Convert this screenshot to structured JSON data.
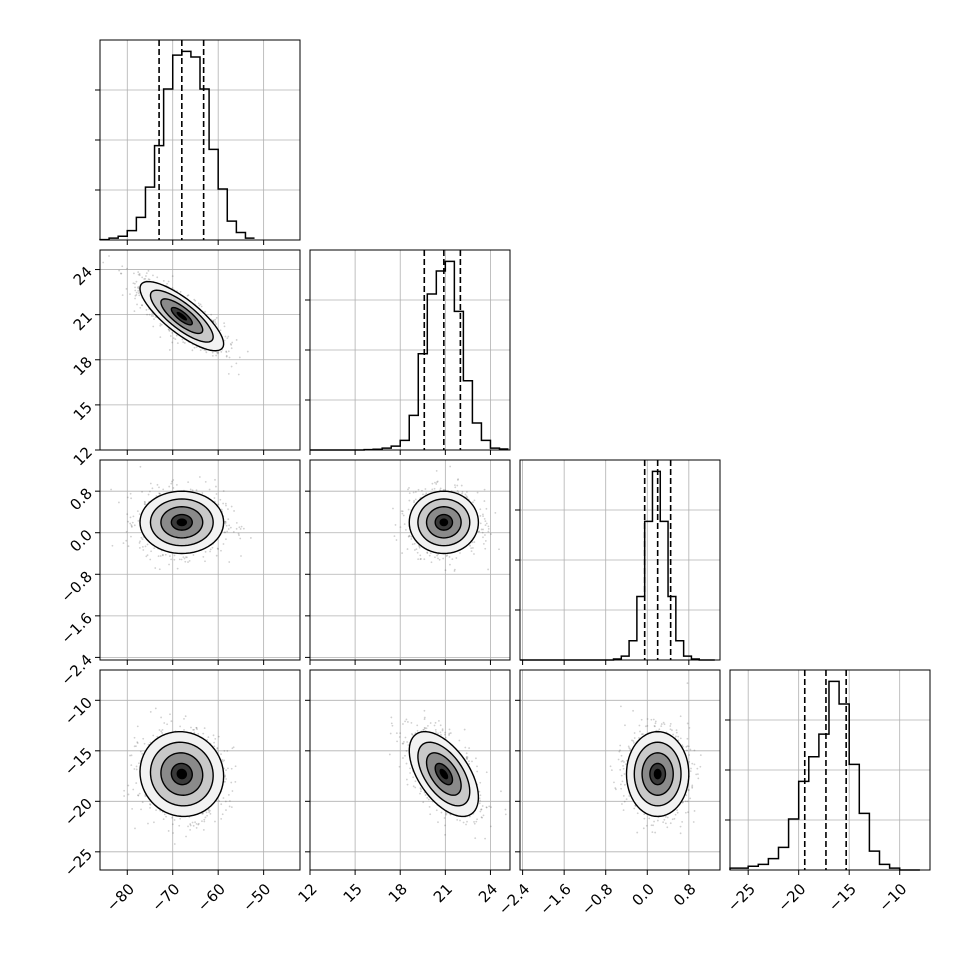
{
  "chart_data": {
    "type": "corner",
    "parameters": [
      {
        "range": [
          -86,
          -42
        ],
        "ticks": [
          -80,
          -70,
          -60,
          -50
        ],
        "tick_labels": [
          "−80",
          "−70",
          "−60",
          "−50"
        ],
        "center": -68,
        "sigma": 4.6,
        "quantiles": [
          -73.0,
          -68.0,
          -63.2
        ]
      },
      {
        "range": [
          12,
          25.3
        ],
        "ticks": [
          12,
          15,
          18,
          21,
          24
        ],
        "tick_labels": [
          "12",
          "15",
          "18",
          "21",
          "24"
        ],
        "center": 20.9,
        "sigma": 1.15,
        "quantiles": [
          19.6,
          20.9,
          22.0
        ]
      },
      {
        "range": [
          -2.45,
          1.4
        ],
        "ticks": [
          -2.4,
          -1.6,
          -0.8,
          0.0,
          0.8
        ],
        "tick_labels": [
          "−2.4",
          "−1.6",
          "−0.8",
          "0.0",
          "0.8"
        ],
        "center": 0.2,
        "sigma": 0.3,
        "quantiles": [
          -0.05,
          0.2,
          0.45
        ]
      },
      {
        "range": [
          -26.8,
          -7
        ],
        "ticks": [
          -25,
          -20,
          -15,
          -10
        ],
        "tick_labels": [
          "−25",
          "−20",
          "−15",
          "−10"
        ],
        "center": -17.3,
        "sigma": 2.1,
        "quantiles": [
          -19.4,
          -17.3,
          -15.3
        ]
      }
    ],
    "histograms": [
      {
        "param": 0,
        "bins": [
          -86,
          -84,
          -82,
          -80,
          -78,
          -76,
          -74,
          -72,
          -70,
          -68,
          -66,
          -64,
          -62,
          -60,
          -58,
          -56,
          -54,
          -52
        ],
        "counts": [
          0.2,
          1,
          2,
          5,
          12,
          28,
          50,
          80,
          98,
          100,
          97,
          80,
          48,
          27,
          10,
          4,
          1
        ]
      },
      {
        "param": 1,
        "bins": [
          12,
          12.6,
          13.2,
          13.8,
          14.4,
          15,
          15.6,
          16.2,
          16.8,
          17.4,
          18,
          18.6,
          19.2,
          19.8,
          20.4,
          21,
          21.6,
          22.2,
          22.8,
          23.4,
          24,
          24.6,
          25.2
        ],
        "counts": [
          0,
          0,
          0,
          0,
          0,
          0,
          0.2,
          0.4,
          1,
          2,
          5,
          18,
          50,
          81,
          93,
          98,
          72,
          36,
          14,
          5,
          1,
          0.5
        ]
      },
      {
        "param": 2,
        "bins": [
          -2.45,
          -2.3,
          -2.15,
          -2.0,
          -1.85,
          -1.7,
          -1.55,
          -1.4,
          -1.25,
          -1.1,
          -0.95,
          -0.8,
          -0.65,
          -0.5,
          -0.35,
          -0.2,
          -0.05,
          0.1,
          0.25,
          0.4,
          0.55,
          0.7,
          0.85,
          1.0,
          1.15,
          1.3
        ],
        "counts": [
          0,
          0,
          0,
          0,
          0,
          0,
          0,
          0,
          0,
          0,
          0,
          0,
          0.5,
          2,
          10,
          33,
          72,
          98,
          72,
          33,
          10,
          2,
          0.5,
          0,
          0
        ]
      },
      {
        "param": 3,
        "bins": [
          -26.8,
          -26,
          -25,
          -24,
          -23,
          -22,
          -21,
          -20,
          -19,
          -18,
          -17,
          -16,
          -15,
          -14,
          -13,
          -12,
          -11,
          -10,
          -9,
          -8
        ],
        "counts": [
          1,
          1,
          2,
          3,
          6,
          12,
          27,
          47,
          60,
          72,
          100,
          88,
          56,
          30,
          10,
          3,
          1,
          0,
          0
        ]
      }
    ],
    "contour_levels_sigma": [
      0.5,
      1.0,
      1.5,
      2.0
    ],
    "pairs": [
      {
        "x": 0,
        "y": 1,
        "correlation": -0.8
      },
      {
        "x": 0,
        "y": 2,
        "correlation": 0.0
      },
      {
        "x": 1,
        "y": 2,
        "correlation": 0.0
      },
      {
        "x": 0,
        "y": 3,
        "correlation": -0.05
      },
      {
        "x": 1,
        "y": 3,
        "correlation": -0.55
      },
      {
        "x": 2,
        "y": 3,
        "correlation": 0.0
      }
    ],
    "grid": true,
    "colors": {
      "line": "#000000",
      "grid": "#b0b0b0",
      "scatter": "#555555"
    }
  }
}
